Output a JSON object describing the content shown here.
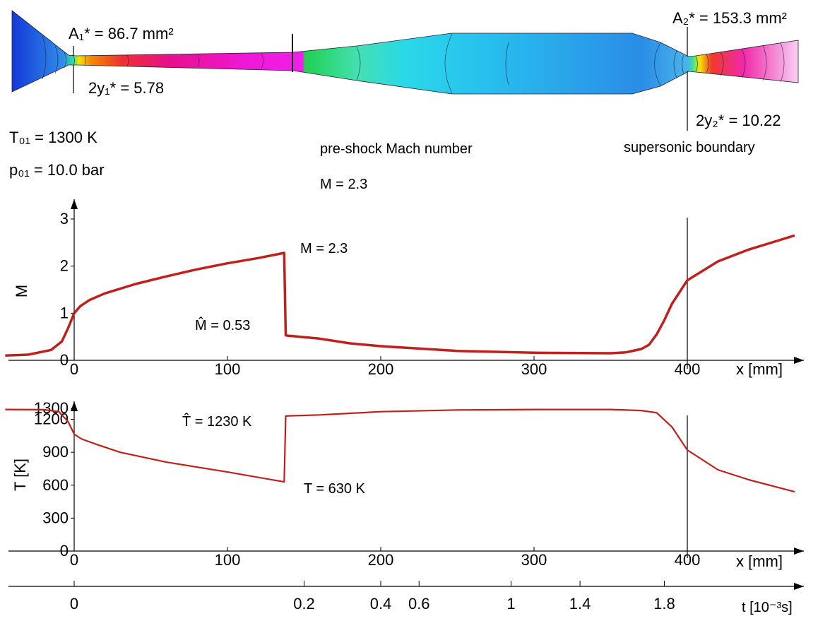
{
  "nozzle": {
    "a1_label": "A₁* = 86.7 mm²",
    "y1_label": "2y₁* = 5.78",
    "a2_label": "A₂* = 153.3 mm²",
    "y2_label": "2y₂* = 10.22",
    "t01_label": "T₀₁ = 1300 K",
    "p01_label": "p₀₁ = 10.0 bar",
    "preshock_label": "pre-shock Mach number",
    "preshock_value": "M = 2.3",
    "supersonic_label": "supersonic boundary"
  },
  "chart_data": [
    {
      "type": "line",
      "ylabel": "M",
      "xlabel": "x [mm]",
      "xlim": [
        -45,
        470
      ],
      "ylim": [
        0,
        3
      ],
      "xticks": [
        "0",
        "100",
        "200",
        "300",
        "400"
      ],
      "yticks": [
        "0",
        "1",
        "2",
        "3"
      ],
      "series": [
        {
          "color": "#c0201c",
          "x": [
            -45,
            -30,
            -15,
            -8,
            -4,
            0,
            4,
            10,
            20,
            40,
            60,
            80,
            100,
            120,
            137,
            138,
            140,
            160,
            180,
            200,
            250,
            300,
            350,
            360,
            370,
            375,
            380,
            385,
            390,
            400,
            420,
            440,
            460,
            470
          ],
          "y": [
            0.1,
            0.12,
            0.22,
            0.4,
            0.68,
            1.0,
            1.15,
            1.28,
            1.42,
            1.62,
            1.78,
            1.93,
            2.06,
            2.17,
            2.28,
            0.53,
            0.52,
            0.46,
            0.36,
            0.3,
            0.2,
            0.16,
            0.15,
            0.17,
            0.24,
            0.33,
            0.55,
            0.85,
            1.2,
            1.7,
            2.1,
            2.35,
            2.55,
            2.65
          ]
        }
      ],
      "annotations": [
        "M = 2.3",
        "M̂ = 0.53"
      ]
    },
    {
      "type": "line",
      "ylabel": "T [K]",
      "xlabel": "x [mm]",
      "xlim": [
        -45,
        470
      ],
      "ylim": [
        0,
        1300
      ],
      "xticks": [
        "0",
        "100",
        "200",
        "300",
        "400"
      ],
      "yticks": [
        "0",
        "300",
        "600",
        "900",
        "1200",
        "1300"
      ],
      "series": [
        {
          "color": "#c0201c",
          "x": [
            -45,
            -20,
            -10,
            -4,
            0,
            5,
            15,
            30,
            60,
            100,
            137,
            138,
            140,
            160,
            180,
            200,
            250,
            300,
            350,
            370,
            380,
            390,
            400,
            420,
            440,
            470
          ],
          "y": [
            1290,
            1288,
            1270,
            1180,
            1065,
            1020,
            970,
            900,
            810,
            720,
            630,
            1230,
            1232,
            1240,
            1255,
            1270,
            1285,
            1290,
            1290,
            1280,
            1260,
            1130,
            920,
            740,
            650,
            540
          ]
        }
      ],
      "annotations": [
        "T̂ = 1230 K",
        "T = 630 K"
      ]
    }
  ],
  "time_axis": {
    "label": "t [10⁻³s]",
    "ticks": [
      "0",
      "0.2",
      "0.4",
      "0.6",
      "1",
      "1.4",
      "1.8"
    ],
    "tick_x_mm": [
      0,
      150,
      200,
      225,
      285,
      330,
      385
    ]
  }
}
